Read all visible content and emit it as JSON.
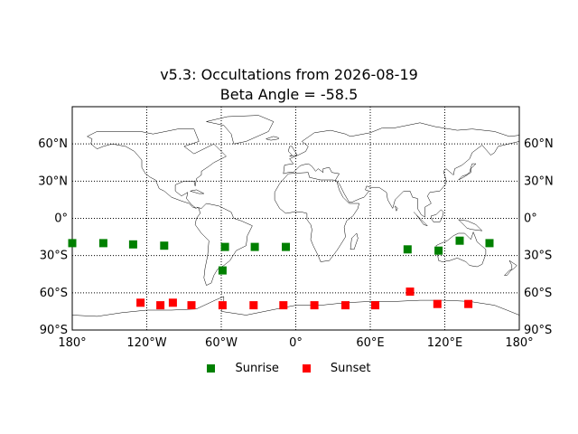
{
  "title_line1": "v5.3: Occultations from 2026-08-19",
  "title_line2": "Beta Angle = -58.5",
  "colors": {
    "sunrise": "#008000",
    "sunset": "#ff0000",
    "coast": "#000000"
  },
  "chart_data": {
    "type": "scatter",
    "projection": "equirectangular",
    "xlim": [
      -180,
      180
    ],
    "ylim": [
      -90,
      90
    ],
    "grid": true,
    "x_ticks": [
      {
        "value": -180,
        "label": "180°"
      },
      {
        "value": -120,
        "label": "120°W"
      },
      {
        "value": -60,
        "label": "60°W"
      },
      {
        "value": 0,
        "label": "0°"
      },
      {
        "value": 60,
        "label": "60°E"
      },
      {
        "value": 120,
        "label": "120°E"
      },
      {
        "value": 180,
        "label": "180°"
      }
    ],
    "y_ticks": [
      {
        "value": 60,
        "label": "60°N"
      },
      {
        "value": 30,
        "label": "30°N"
      },
      {
        "value": 0,
        "label": "0°"
      },
      {
        "value": -30,
        "label": "30°S"
      },
      {
        "value": -60,
        "label": "60°S"
      },
      {
        "value": -90,
        "label": "90°S"
      }
    ],
    "legend_position": "bottom-center",
    "series": [
      {
        "name": "Sunrise",
        "marker": "square",
        "color": "#008000",
        "points": [
          [
            -180,
            -20
          ],
          [
            -155,
            -20
          ],
          [
            -131,
            -21
          ],
          [
            -106,
            -22
          ],
          [
            -57,
            -23
          ],
          [
            -33,
            -23
          ],
          [
            -8,
            -23
          ],
          [
            90,
            -25
          ],
          [
            115,
            -26
          ],
          [
            132,
            -18
          ],
          [
            156,
            -20
          ],
          [
            -59,
            -42
          ]
        ]
      },
      {
        "name": "Sunset",
        "marker": "square",
        "color": "#ff0000",
        "points": [
          [
            -125,
            -68
          ],
          [
            -109,
            -70
          ],
          [
            -99,
            -68
          ],
          [
            -84,
            -70
          ],
          [
            -59,
            -70
          ],
          [
            -34,
            -70
          ],
          [
            -10,
            -70
          ],
          [
            15,
            -70
          ],
          [
            40,
            -70
          ],
          [
            64,
            -70
          ],
          [
            92,
            -59
          ],
          [
            114,
            -69
          ],
          [
            139,
            -69
          ]
        ]
      }
    ]
  }
}
